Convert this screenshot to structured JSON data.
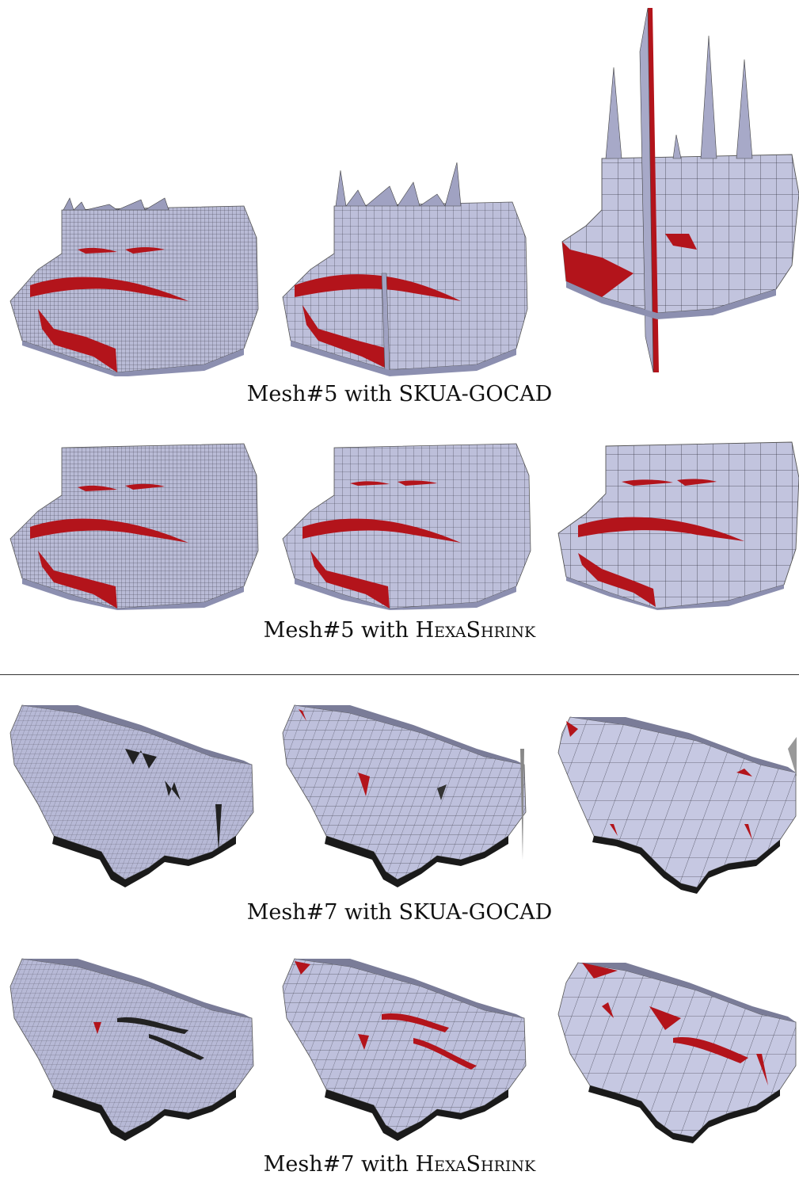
{
  "figure": {
    "captions": [
      {
        "prefix": "Mesh#5 with ",
        "method": "SKUA-GOCAD",
        "method_style": "normal"
      },
      {
        "prefix": "Mesh#5 with ",
        "method": "HexaShrink",
        "method_style": "small-caps"
      },
      {
        "prefix": "Mesh#7 with ",
        "method": "SKUA-GOCAD",
        "method_style": "normal"
      },
      {
        "prefix": "Mesh#7 with ",
        "method": "HexaShrink",
        "method_style": "small-caps"
      }
    ]
  },
  "colors": {
    "mesh_surface": "#b9bbd6",
    "mesh_shade": "#8c8fb0",
    "mesh_grid": "#3a3a48",
    "fault": "#b3141b",
    "base_shadow": "#1a1a1a"
  },
  "icons": [
    "mesh5-render",
    "mesh7-render"
  ]
}
